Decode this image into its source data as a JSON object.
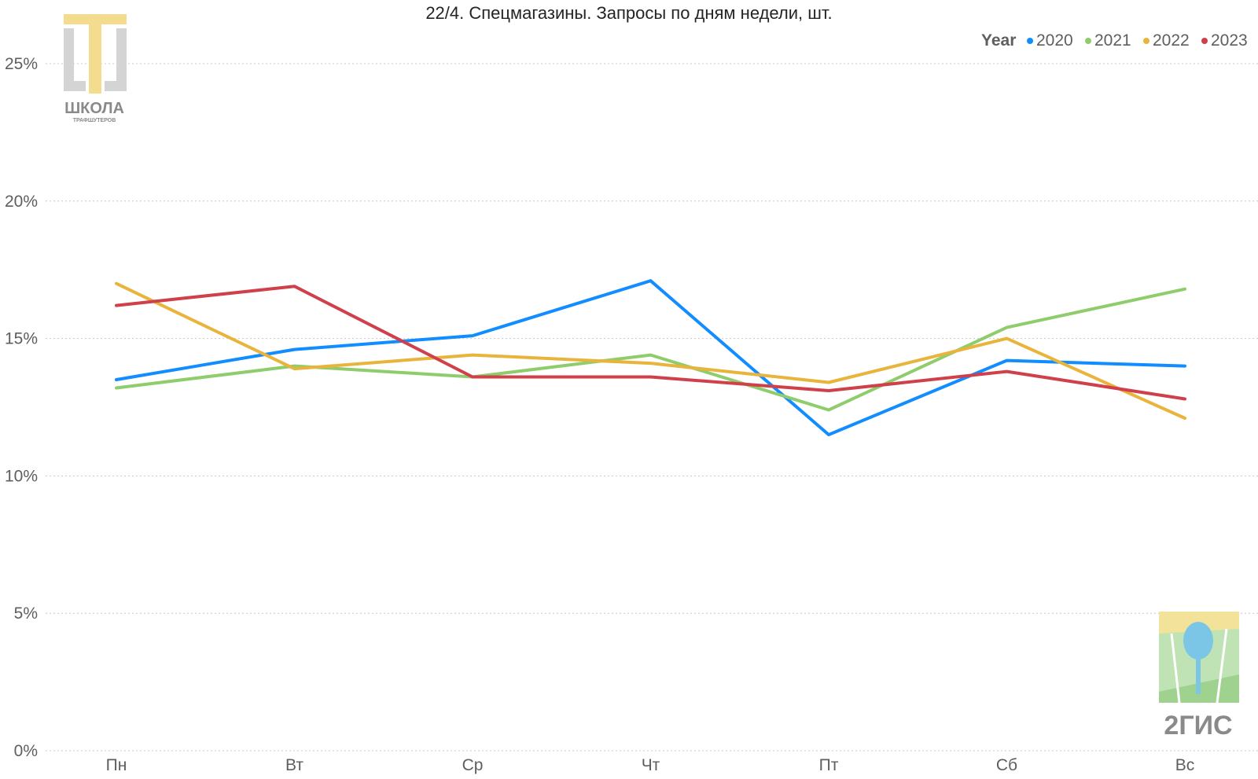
{
  "colors": {
    "2020": "#118dff",
    "2021": "#8fcc6b",
    "2022": "#e8b43c",
    "2023": "#d0404b",
    "grid": "#c8c8c8",
    "text": "#605e5c"
  },
  "logos": {
    "school": {
      "line1": "ШКОЛА",
      "line2": "ТРАФШУТЕРОВ",
      "icon": "school-logo-icon"
    },
    "gis": {
      "text": "2ГИС",
      "icon": "2gis-logo-icon"
    }
  },
  "chart_data": {
    "type": "line",
    "title": "22/4. Спецмагазины. Запросы по дням недели, шт.",
    "legend_title": "Year",
    "legend_position": "top-right",
    "categories": [
      "Пн",
      "Вт",
      "Ср",
      "Чт",
      "Пт",
      "Сб",
      "Вс"
    ],
    "y_ticks": [
      0,
      5,
      10,
      15,
      20,
      25
    ],
    "y_tick_labels": [
      "0%",
      "5%",
      "10%",
      "15%",
      "20%",
      "25%"
    ],
    "ylim": [
      0,
      25
    ],
    "grid": true,
    "series": [
      {
        "name": "2020",
        "values": [
          13.5,
          14.6,
          15.1,
          17.1,
          11.5,
          14.2,
          14.0
        ]
      },
      {
        "name": "2021",
        "values": [
          13.2,
          14.0,
          13.6,
          14.4,
          12.4,
          15.4,
          16.8
        ]
      },
      {
        "name": "2022",
        "values": [
          17.0,
          13.9,
          14.4,
          14.1,
          13.4,
          15.0,
          12.1
        ]
      },
      {
        "name": "2023",
        "values": [
          16.2,
          16.9,
          13.6,
          13.6,
          13.1,
          13.8,
          12.8
        ]
      }
    ]
  }
}
